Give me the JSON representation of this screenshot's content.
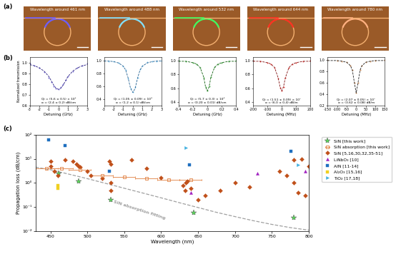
{
  "panel_labels": [
    "(a)",
    "(b)",
    "(c)"
  ],
  "images": {
    "type": "image",
    "titles": [
      "Wavelength around 461 nm",
      "Wavelength around 488 nm",
      "Wavelength around 532 nm",
      "Wavelength around 644 nm",
      "Wavelength around 780 nm"
    ],
    "colors": [
      "#6a5cff",
      "#7fe0ff",
      "#3cff60",
      "#ff3020",
      "#ffb080"
    ]
  },
  "chart_data": [
    {
      "type": "scatter",
      "xlabel": "Detuning (GHz)",
      "ylabel": "Normalized transmission",
      "x": [
        -3,
        -2.5,
        -2,
        -1.5,
        -1,
        -0.75,
        -0.5,
        -0.25,
        0,
        0.25,
        0.5,
        0.75,
        1,
        1.5,
        2,
        2.5,
        3
      ],
      "values": [
        0.99,
        0.97,
        0.95,
        0.91,
        0.86,
        0.82,
        0.78,
        0.76,
        0.75,
        0.77,
        0.8,
        0.84,
        0.87,
        0.92,
        0.95,
        0.97,
        0.99
      ],
      "fit_values": [
        0.98,
        0.97,
        0.95,
        0.92,
        0.87,
        0.83,
        0.79,
        0.76,
        0.75,
        0.76,
        0.79,
        0.83,
        0.87,
        0.92,
        0.95,
        0.97,
        0.98
      ],
      "color": "#5a4fcf",
      "fit_color": "#2a2080",
      "annotations": [
        "Qi = (5.6 ± 0.5) × 10⁵",
        "α = (2.4 ± 0.2) dB/cm"
      ],
      "xlim": [
        -3,
        3
      ],
      "xticks": [
        -3,
        -2,
        -1,
        0,
        1,
        2,
        3
      ],
      "ylim": [
        0.6,
        1.05
      ],
      "yticks": [
        0.6,
        0.7,
        0.8,
        0.9,
        1.0
      ]
    },
    {
      "type": "scatter",
      "xlabel": "Detuning (GHz)",
      "x": [
        -3,
        -2.5,
        -2,
        -1.5,
        -1,
        -0.75,
        -0.5,
        -0.25,
        0,
        0.25,
        0.5,
        0.75,
        1,
        1.5,
        2,
        2.5,
        3
      ],
      "values": [
        1.0,
        0.99,
        0.98,
        0.96,
        0.91,
        0.85,
        0.72,
        0.56,
        0.51,
        0.58,
        0.73,
        0.86,
        0.92,
        0.97,
        0.98,
        0.99,
        1.0
      ],
      "fit_values": [
        0.99,
        0.99,
        0.98,
        0.96,
        0.91,
        0.85,
        0.73,
        0.57,
        0.5,
        0.57,
        0.73,
        0.85,
        0.91,
        0.96,
        0.98,
        0.99,
        0.99
      ],
      "color": "#5fb4e8",
      "fit_color": "#1f5f90",
      "annotations": [
        "Qi = (1.05 ± 0.09) × 10⁶",
        "α = (1.2 ± 0.1) dB/cm"
      ],
      "xlim": [
        -3,
        3
      ],
      "xticks": [
        -3,
        -2,
        -1,
        0,
        1,
        2,
        3
      ],
      "ylim": [
        0.3,
        1.05
      ],
      "yticks": [
        0.4,
        0.6,
        0.8,
        1.0
      ]
    },
    {
      "type": "scatter",
      "xlabel": "Detuning (GHz)",
      "x": [
        -0.4,
        -0.3,
        -0.2,
        -0.15,
        -0.1,
        -0.05,
        -0.025,
        0,
        0.025,
        0.05,
        0.1,
        0.15,
        0.2,
        0.3,
        0.4
      ],
      "values": [
        1.0,
        0.99,
        0.97,
        0.95,
        0.9,
        0.75,
        0.62,
        0.56,
        0.63,
        0.76,
        0.91,
        0.95,
        0.97,
        0.99,
        1.0
      ],
      "fit_values": [
        0.99,
        0.99,
        0.97,
        0.95,
        0.9,
        0.76,
        0.62,
        0.56,
        0.62,
        0.76,
        0.9,
        0.95,
        0.97,
        0.99,
        0.99
      ],
      "color": "#2ca02c",
      "fit_color": "#0f5f0f",
      "annotations": [
        "Qi = (5.7 ± 0.3) × 10⁶",
        "α = (0.20 ± 0.01) dB/cm"
      ],
      "xlim": [
        -0.4,
        0.4
      ],
      "xticks": [
        -0.4,
        -0.2,
        0,
        0.2,
        0.4
      ],
      "ylim": [
        0.35,
        1.05
      ],
      "yticks": [
        0.4,
        0.6,
        0.8,
        1.0
      ]
    },
    {
      "type": "scatter",
      "xlabel": "Detuning (MHz)",
      "x": [
        -200,
        -150,
        -100,
        -75,
        -50,
        -25,
        -12,
        0,
        12,
        25,
        50,
        75,
        100,
        150,
        200
      ],
      "values": [
        1.0,
        0.99,
        0.97,
        0.95,
        0.9,
        0.74,
        0.61,
        0.56,
        0.62,
        0.75,
        0.9,
        0.95,
        0.97,
        0.99,
        1.0
      ],
      "fit_values": [
        0.99,
        0.99,
        0.97,
        0.95,
        0.9,
        0.75,
        0.62,
        0.56,
        0.62,
        0.75,
        0.9,
        0.95,
        0.97,
        0.99,
        0.99
      ],
      "color": "#e0201b",
      "fit_color": "#801010",
      "annotations": [
        "Qi = (1.51 ± 0.09) × 10⁷",
        "α = (6.0 ± 0.4) dB/m"
      ],
      "xlim": [
        -200,
        200
      ],
      "xticks": [
        -200,
        -100,
        0,
        100,
        200
      ],
      "ylim": [
        0.35,
        1.05
      ],
      "yticks": [
        0.4,
        0.6,
        0.8,
        1.0
      ]
    },
    {
      "type": "scatter",
      "xlabel": "Detuning (MHz)",
      "x": [
        -150,
        -100,
        -75,
        -50,
        -30,
        -20,
        -10,
        0,
        10,
        20,
        30,
        50,
        75,
        100,
        150
      ],
      "values": [
        1.0,
        0.99,
        0.98,
        0.96,
        0.9,
        0.82,
        0.6,
        0.42,
        0.6,
        0.82,
        0.9,
        0.96,
        0.98,
        0.99,
        1.0
      ],
      "fit_values": [
        0.99,
        0.99,
        0.98,
        0.96,
        0.9,
        0.82,
        0.61,
        0.42,
        0.61,
        0.82,
        0.9,
        0.96,
        0.98,
        0.99,
        0.99
      ],
      "color": "#c87533",
      "fit_color": "#202020",
      "annotations": [
        "Qi = (2.07 ± 0.05) × 10⁷",
        "α = (3.62 ± 0.08) dB/m"
      ],
      "xlim": [
        -150,
        150
      ],
      "xticks": [
        -150,
        -100,
        -50,
        0,
        50,
        100,
        150
      ],
      "ylim": [
        0.2,
        1.05
      ],
      "yticks": [
        0.2,
        0.4,
        0.6,
        0.8,
        1.0
      ]
    },
    {
      "type": "scatter",
      "xlabel": "Wavelength (nm)",
      "ylabel": "Propagation loss (dB/cm)",
      "log": "y",
      "legend": "upper right",
      "xlim": [
        430,
        800
      ],
      "xticks": [
        450,
        500,
        550,
        600,
        650,
        700,
        750,
        800
      ],
      "ylim": [
        0.01,
        100
      ],
      "yticks": [
        {
          "value": 0.01,
          "label": "10⁻²"
        },
        {
          "value": 0.1,
          "label": "10⁻¹"
        },
        {
          "value": 1,
          "label": "10⁰"
        },
        {
          "value": 10,
          "label": "10¹"
        },
        {
          "value": 100,
          "label": "10²"
        }
      ],
      "series": [
        {
          "name": "SiN [this work]",
          "color": "#5fd35f",
          "marker": "star",
          "x": [
            461,
            488,
            532,
            644,
            780
          ],
          "values": [
            2.4,
            1.2,
            0.2,
            0.06,
            0.0362
          ]
        },
        {
          "name": "SiN absorption [this work]",
          "color": "#e08040",
          "marker": "square",
          "x": [
            445,
            465,
            490,
            520,
            550,
            580,
            610,
            640
          ],
          "values": [
            4.0,
            4.0,
            3.6,
            2.0,
            1.8,
            1.5,
            1.3,
            1.3
          ],
          "x_errors": [
            15,
            15,
            15,
            15,
            15,
            15,
            15,
            15
          ]
        },
        {
          "name": "SiN [5,16,30,32,35-51]",
          "color": "#c0501a",
          "marker": "diamond",
          "x": [
            450,
            450,
            455,
            460,
            470,
            480,
            485,
            488,
            490,
            500,
            505,
            520,
            530,
            532,
            532,
            532,
            560,
            580,
            600,
            630,
            632,
            633,
            635,
            640,
            650,
            660,
            680,
            700,
            720,
            760,
            770,
            780,
            780,
            785,
            790,
            795,
            800
          ],
          "values": [
            8,
            5,
            3,
            2,
            9,
            8,
            6,
            5,
            4.5,
            3,
            2,
            1.5,
            8,
            6,
            1,
            0.5,
            9,
            4,
            1.7,
            0.8,
            0.5,
            1,
            1.2,
            0.6,
            0.2,
            0.3,
            0.5,
            1,
            0.7,
            3,
            2,
            9,
            1,
            0.4,
            10,
            0.3,
            5
          ]
        },
        {
          "name": "LiNbO₃ [10]",
          "color": "#a020c0",
          "marker": "triangle_up",
          "x": [
            640,
            730,
            795
          ],
          "values": [
            0.4,
            2.5,
            3.0
          ]
        },
        {
          "name": "AlN [11-14]",
          "color": "#1f6fbf",
          "marker": "square",
          "x": [
            448,
            470,
            530,
            638,
            776
          ],
          "values": [
            60,
            35,
            3.0,
            5.5,
            20
          ]
        },
        {
          "name": "Al₂O₃ [15,16]",
          "color": "#f0d020",
          "marker": "square",
          "x": [
            460,
            460
          ],
          "values": [
            0.8,
            0.6
          ]
        },
        {
          "name": "TiO₂ [17,18]",
          "color": "#40b0e0",
          "marker": "triangle_right",
          "x": [
            633,
            785
          ],
          "values": [
            28,
            5.5
          ]
        }
      ],
      "fit_curve": {
        "type": "line",
        "color": "#a0a0a0",
        "line_style": "dashed",
        "annotation": "SiN absorption fitting",
        "x": [
          430,
          450,
          475,
          500,
          525,
          550,
          575,
          600,
          625,
          650,
          675,
          700,
          725,
          750,
          775,
          800
        ],
        "values": [
          4.5,
          3.5,
          2.3,
          1.5,
          0.95,
          0.6,
          0.38,
          0.24,
          0.15,
          0.095,
          0.06,
          0.04,
          0.027,
          0.019,
          0.014,
          0.011
        ]
      }
    }
  ]
}
